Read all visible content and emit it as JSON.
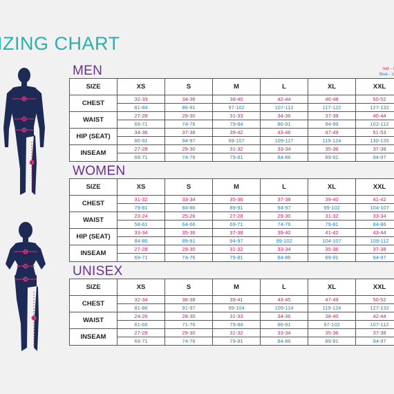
{
  "title": "IZING CHART",
  "legend": {
    "line1": "red - i",
    "line2": "blue - c"
  },
  "marker_labels": {
    "chest": "C",
    "waist": "W",
    "hip": "H",
    "inseam": "I"
  },
  "columns": [
    "SIZE",
    "XS",
    "S",
    "M",
    "L",
    "XL",
    "XXL"
  ],
  "colors": {
    "red": "#d21f63",
    "blue": "#2a7fc7",
    "heading": "#6a2f8f",
    "title": "#2ab0ac",
    "figure": "#1c2a55",
    "figure_marker": "#e0307a"
  },
  "sections": [
    {
      "title": "MEN",
      "rows": [
        {
          "label": "CHEST",
          "red": [
            "32-33",
            "34-36",
            "38-40",
            "42-44",
            "46-48",
            "50-52"
          ],
          "blue": [
            "81-84",
            "86-91",
            "97-102",
            "107-112",
            "117-122",
            "127-132"
          ]
        },
        {
          "label": "WAIST",
          "red": [
            "27-28",
            "29-30",
            "31-33",
            "34-36",
            "37-39",
            "40-44"
          ],
          "blue": [
            "69-71",
            "74-76",
            "79-84",
            "86-91",
            "94-99",
            "102-112"
          ]
        },
        {
          "label": "HIP (SEAT)",
          "red": [
            "34-36",
            "37-38",
            "39-42",
            "43-46",
            "47-49",
            "51-53"
          ],
          "blue": [
            "86-91",
            "94-97",
            "99-107",
            "109-117",
            "119-124",
            "130-135"
          ]
        },
        {
          "label": "INSEAM",
          "red": [
            "27-28",
            "29-30",
            "31-32",
            "33-34",
            "35-36",
            "37-38"
          ],
          "blue": [
            "69-71",
            "74-76",
            "79-81",
            "84-86",
            "89-91",
            "94-97"
          ]
        }
      ]
    },
    {
      "title": "WOMEN",
      "rows": [
        {
          "label": "CHEST",
          "red": [
            "31-32",
            "33-34",
            "35-36",
            "37-38",
            "39-40",
            "41-42"
          ],
          "blue": [
            "79-81",
            "84-86",
            "89-91",
            "94-97",
            "99-102",
            "104-107"
          ]
        },
        {
          "label": "WAIST",
          "red": [
            "23-24",
            "25-26",
            "27-28",
            "29-30",
            "31-32",
            "33-34"
          ],
          "blue": [
            "58-61",
            "64-66",
            "69-71",
            "74-76",
            "79-81",
            "84-86"
          ]
        },
        {
          "label": "HIP (SEAT)",
          "red": [
            "33-34",
            "35-36",
            "37-38",
            "39-40",
            "41-42",
            "43-44"
          ],
          "blue": [
            "84-86",
            "89-91",
            "94-97",
            "99-102",
            "104-107",
            "109-112"
          ]
        },
        {
          "label": "INSEAM",
          "red": [
            "27-28",
            "29-30",
            "31-32",
            "33-34",
            "35-36",
            "37-38"
          ],
          "blue": [
            "69-71",
            "74-76",
            "79-81",
            "84-86",
            "89-91",
            "94-97"
          ]
        }
      ]
    },
    {
      "title": "UNISEX",
      "rows": [
        {
          "label": "CHEST",
          "red": [
            "32-34",
            "36-38",
            "39-41",
            "43-45",
            "47-49",
            "50-52"
          ],
          "blue": [
            "81-86",
            "91-97",
            "99-104",
            "109-114",
            "119-124",
            "127-132"
          ]
        },
        {
          "label": "WAIST",
          "red": [
            "24-26",
            "28-30",
            "31-33",
            "34-36",
            "38-40",
            "42-44"
          ],
          "blue": [
            "61-66",
            "71-76",
            "79-84",
            "86-91",
            "97-102",
            "107-112"
          ]
        },
        {
          "label": "INSEAM",
          "red": [
            "27-28",
            "29-30",
            "31-32",
            "33-34",
            "35-36",
            "37-38"
          ],
          "blue": [
            "69-71",
            "74-76",
            "79-81",
            "84-86",
            "89-91",
            "94-97"
          ]
        }
      ]
    }
  ]
}
